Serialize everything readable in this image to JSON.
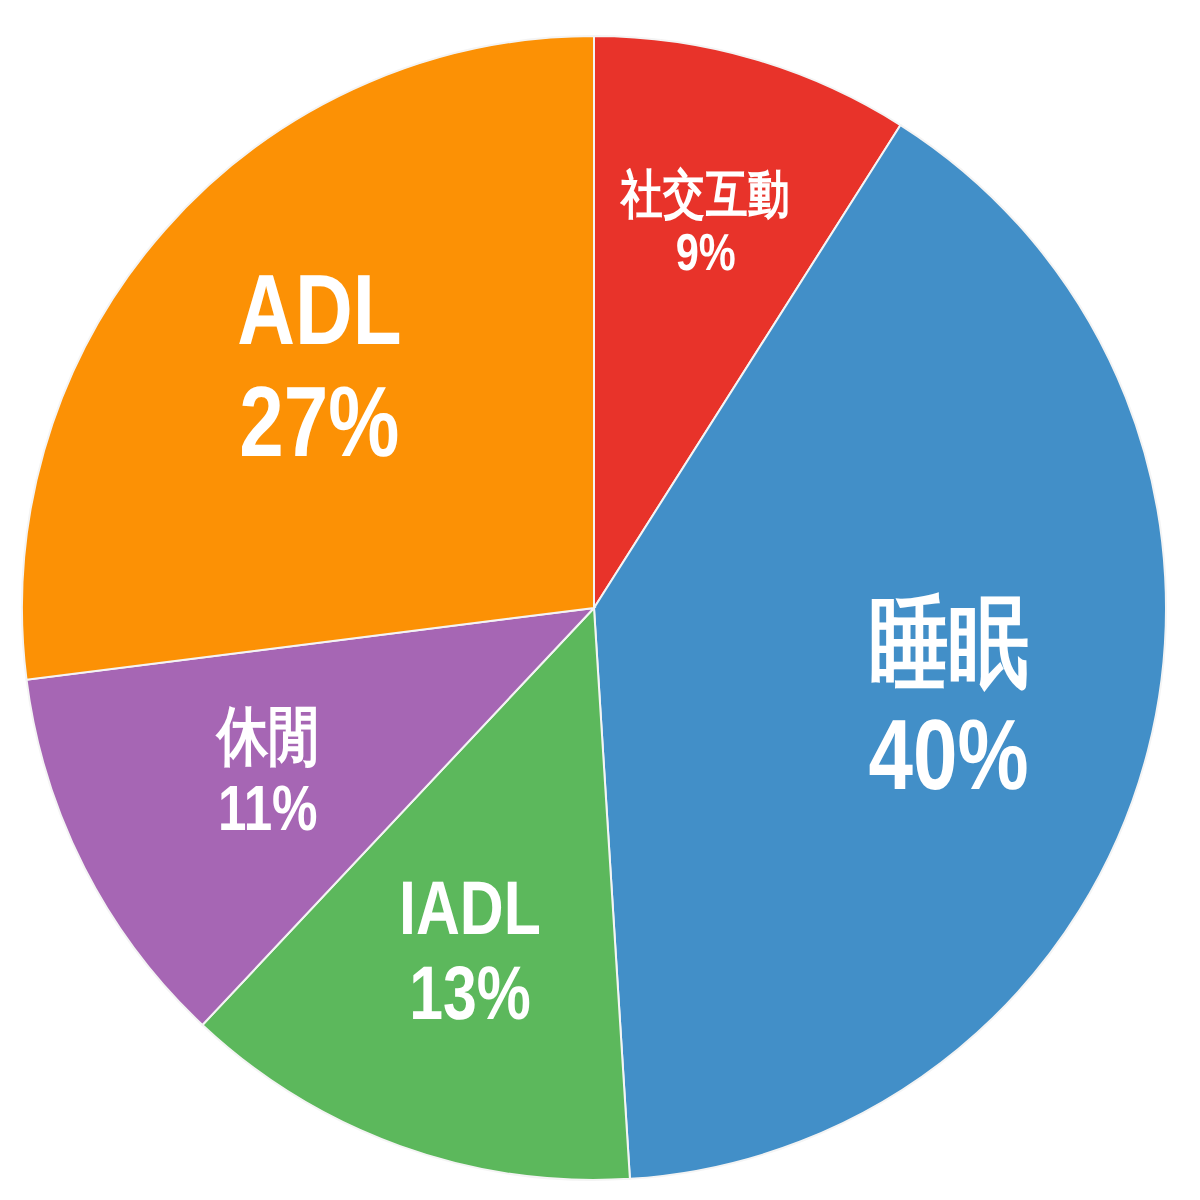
{
  "chart_data": {
    "type": "pie",
    "categories": [
      "社交互動",
      "睡眠",
      "IADL",
      "休閒",
      "ADL"
    ],
    "values": [
      9,
      40,
      13,
      11,
      27
    ],
    "colors": [
      "#e8332a",
      "#428fc8",
      "#5cb85c",
      "#a666b4",
      "#fc9105"
    ],
    "value_labels": [
      "9%",
      "40%",
      "13%",
      "11%",
      "27%"
    ]
  }
}
